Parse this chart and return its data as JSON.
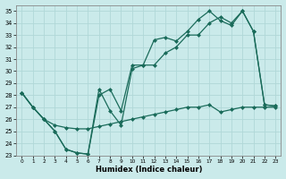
{
  "xlabel": "Humidex (Indice chaleur)",
  "bg_color": "#caeaea",
  "grid_color": "#b0d8d8",
  "line_color": "#1a6b5a",
  "xlim": [
    -0.5,
    23.5
  ],
  "ylim": [
    23,
    35.5
  ],
  "yticks": [
    23,
    24,
    25,
    26,
    27,
    28,
    29,
    30,
    31,
    32,
    33,
    34,
    35
  ],
  "xticks": [
    0,
    1,
    2,
    3,
    4,
    5,
    6,
    7,
    8,
    9,
    10,
    11,
    12,
    13,
    14,
    15,
    16,
    17,
    18,
    19,
    20,
    21,
    22,
    23
  ],
  "line1_x": [
    0,
    1,
    2,
    3,
    4,
    5,
    6,
    7,
    8,
    9,
    10,
    11,
    12,
    13,
    14,
    15,
    16,
    17,
    18,
    19,
    20,
    21,
    22,
    23
  ],
  "line1_y": [
    28.2,
    27.0,
    26.0,
    25.0,
    23.5,
    23.2,
    23.1,
    28.5,
    26.7,
    25.5,
    30.2,
    30.5,
    32.6,
    32.8,
    32.5,
    33.3,
    34.3,
    35.0,
    34.2,
    33.8,
    35.0,
    33.3,
    27.2,
    27.1
  ],
  "line2_x": [
    0,
    1,
    2,
    3,
    4,
    5,
    6,
    7,
    8,
    9,
    10,
    11,
    12,
    13,
    14,
    15,
    16,
    17,
    18,
    19,
    20,
    21,
    22,
    23
  ],
  "line2_y": [
    28.2,
    27.0,
    26.0,
    25.0,
    23.5,
    23.2,
    23.1,
    28.0,
    28.5,
    26.7,
    30.5,
    30.5,
    30.5,
    31.5,
    32.0,
    33.0,
    33.0,
    34.0,
    34.5,
    34.0,
    35.0,
    33.3,
    27.2,
    27.1
  ],
  "line3_x": [
    0,
    1,
    2,
    3,
    4,
    5,
    6,
    7,
    8,
    9,
    10,
    11,
    12,
    13,
    14,
    15,
    16,
    17,
    18,
    19,
    20,
    21,
    22,
    23
  ],
  "line3_y": [
    28.2,
    27.0,
    26.0,
    25.5,
    25.3,
    25.2,
    25.2,
    25.4,
    25.6,
    25.8,
    26.0,
    26.2,
    26.4,
    26.6,
    26.8,
    27.0,
    27.0,
    27.2,
    26.6,
    26.8,
    27.0,
    27.0,
    27.0,
    27.0
  ]
}
